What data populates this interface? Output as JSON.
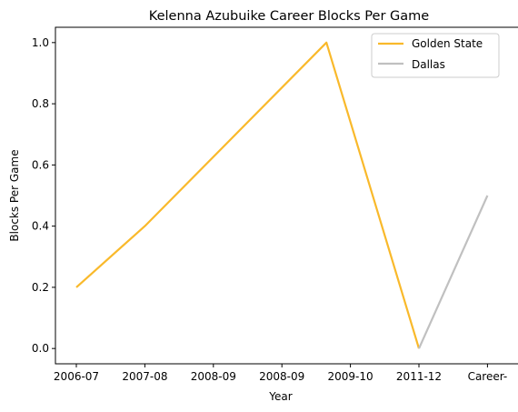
{
  "chart_data": {
    "type": "line",
    "title": "Kelenna Azubuike Career Blocks Per Game",
    "xlabel": "Year",
    "ylabel": "Blocks Per Game",
    "x_tick_labels": [
      "2006-07",
      "2007-08",
      "2008-09",
      "2008-09",
      "2009-10",
      "2011-12",
      "Career-"
    ],
    "y_tick_labels": [
      "0.0",
      "0.2",
      "0.4",
      "0.6",
      "0.8",
      "1.0"
    ],
    "ylim": [
      -0.05,
      1.05
    ],
    "grid": false,
    "legend_position": "top-right",
    "series": [
      {
        "name": "Golden State",
        "color": "#f9b92b",
        "points": [
          {
            "x": "2006-07",
            "y": 0.2
          },
          {
            "x": "2007-08",
            "y": 0.4
          },
          {
            "x": "2009-10",
            "y": 1.0
          },
          {
            "x": "2011-12",
            "y": 0.0
          }
        ]
      },
      {
        "name": "Dallas",
        "color": "#c0c0c0",
        "points": [
          {
            "x": "2011-12",
            "y": 0.0
          },
          {
            "x": "Career-",
            "y": 0.5
          }
        ]
      }
    ]
  }
}
